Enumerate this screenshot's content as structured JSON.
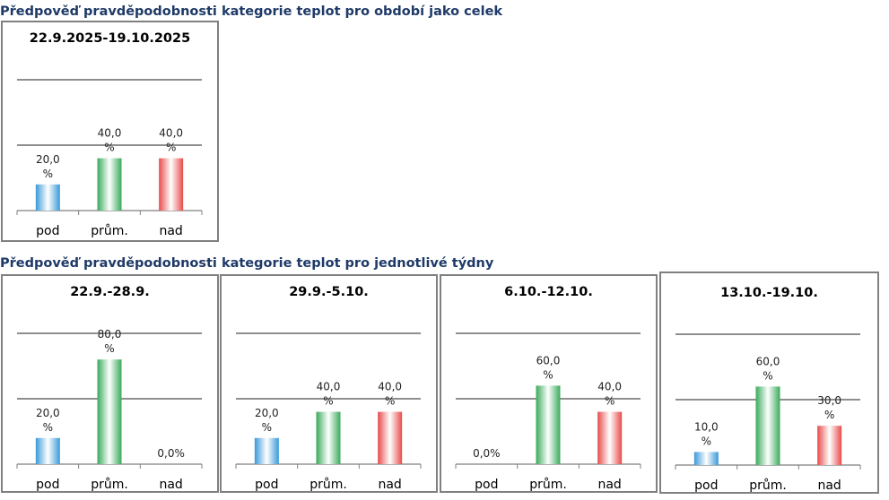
{
  "sections": {
    "period_title": "Předpověď pravděpodobnosti kategorie teplot pro období jako celek",
    "weekly_title": "Předpověď pravděpodobnosti kategorie teplot pro jednotlivé týdny"
  },
  "colors": {
    "title_text": "#1f3a68",
    "pod": "#3a9ad9",
    "prum": "#3aaa5a",
    "nad": "#e84b4b",
    "panel_border": "#808080",
    "gridline": "#4a4a4a"
  },
  "chart_data": [
    {
      "type": "bar",
      "title": "22.9.2025-19.10.2025",
      "categories": [
        "pod",
        "prům.",
        "nad"
      ],
      "values": [
        20.0,
        40.0,
        40.0
      ],
      "value_labels": [
        "20,0 %",
        "40,0 %",
        "40,0 %"
      ],
      "ylim": [
        0,
        100
      ],
      "gridlines_at": [
        50,
        100
      ],
      "legend": "none"
    },
    {
      "type": "bar",
      "title": "22.9.-28.9.",
      "categories": [
        "pod",
        "prům.",
        "nad"
      ],
      "values": [
        20.0,
        80.0,
        0.0
      ],
      "value_labels": [
        "20,0 %",
        "80,0 %",
        "0,0%"
      ],
      "ylim": [
        0,
        100
      ],
      "gridlines_at": [
        50,
        100
      ],
      "legend": "none"
    },
    {
      "type": "bar",
      "title": "29.9.-5.10.",
      "categories": [
        "pod",
        "prům.",
        "nad"
      ],
      "values": [
        20.0,
        40.0,
        40.0
      ],
      "value_labels": [
        "20,0 %",
        "40,0 %",
        "40,0 %"
      ],
      "ylim": [
        0,
        100
      ],
      "gridlines_at": [
        50,
        100
      ],
      "legend": "none"
    },
    {
      "type": "bar",
      "title": "6.10.-12.10.",
      "categories": [
        "pod",
        "prům.",
        "nad"
      ],
      "values": [
        0.0,
        60.0,
        40.0
      ],
      "value_labels": [
        "0,0%",
        "60,0 %",
        "40,0 %"
      ],
      "ylim": [
        0,
        100
      ],
      "gridlines_at": [
        50,
        100
      ],
      "legend": "none"
    },
    {
      "type": "bar",
      "title": "13.10.-19.10.",
      "categories": [
        "pod",
        "prům.",
        "nad"
      ],
      "values": [
        10.0,
        60.0,
        30.0
      ],
      "value_labels": [
        "10,0 %",
        "60,0 %",
        "30,0 %"
      ],
      "ylim": [
        0,
        100
      ],
      "gridlines_at": [
        50,
        100
      ],
      "legend": "none"
    }
  ]
}
